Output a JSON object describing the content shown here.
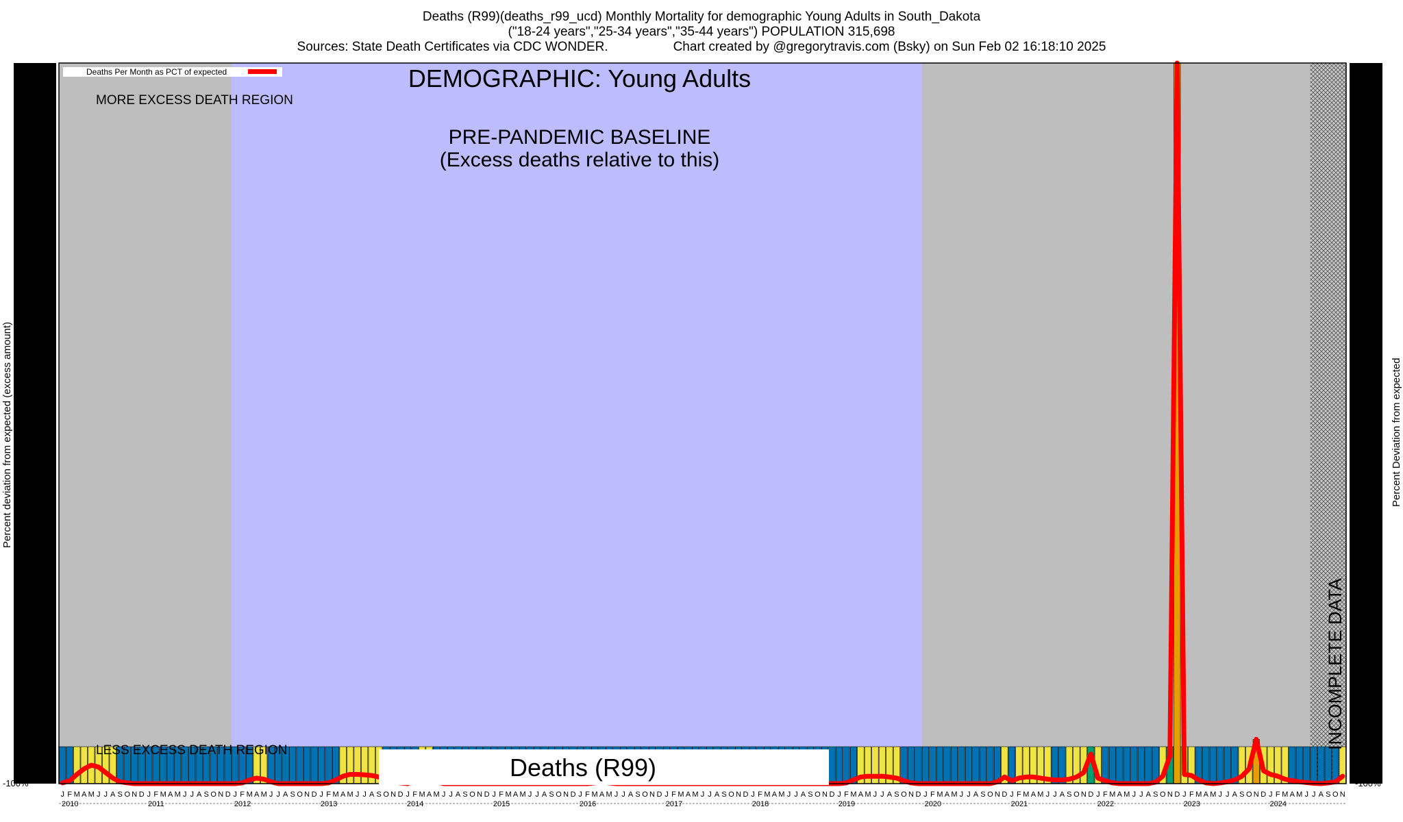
{
  "header": {
    "title_line1": "Deaths (R99)(deaths_r99_ucd) Monthly Mortality for demographic Young Adults in South_Dakota",
    "title_line2": "(\"18-24 years\",\"25-34 years\",\"35-44 years\") POPULATION 315,698",
    "title_line3": "Sources: State Death Certificates via CDC WONDER.                  Chart created by @gregorytravis.com (Bsky) on Sun Feb 02 16:18:10 2025"
  },
  "legend": {
    "label": "Deaths Per Month as PCT of expected",
    "color": "#ff0000"
  },
  "annotations": {
    "demographic": "DEMOGRAPHIC: Young Adults",
    "baseline_line1": "PRE-PANDEMIC BASELINE",
    "baseline_line2": "(Excess deaths relative to this)",
    "more_excess": "MORE EXCESS DEATH REGION",
    "less_excess": "LESS EXCESS DEATH REGION",
    "incomplete": "INCOMPLETE DATA",
    "footer_box": "Deaths (R99)"
  },
  "axes": {
    "ylabel_left": "Percent deviation from expected (excess amount)",
    "ylabel_right": "Percent Deviation from expected",
    "y_bottom_left_tick": "-100%",
    "y_bottom_right_tick": "-100%"
  },
  "colors": {
    "baseline_region": "#bdbdfd",
    "outer_region": "#bebebe",
    "line": "#ff0000",
    "bar_orange": "#e69f00",
    "bar_green": "#009e73",
    "bar_blue": "#0072b2",
    "bar_yellow": "#f0e442"
  },
  "chart_data": {
    "type": "line",
    "title": "Deaths (R99)(deaths_r99_ucd) Monthly Mortality for demographic Young Adults in South_Dakota",
    "ylabel": "Percent deviation from expected (excess amount)",
    "month_letters": [
      "J",
      "F",
      "M",
      "A",
      "M",
      "J",
      "J",
      "A",
      "S",
      "O",
      "N",
      "D"
    ],
    "years": [
      "2010",
      "2011",
      "2012",
      "2013",
      "2014",
      "2015",
      "2016",
      "2017",
      "2018",
      "2019",
      "2020",
      "2021",
      "2022",
      "2023",
      "2024"
    ],
    "last_year_months_shown": 11,
    "baseline_region": {
      "start": "2012-01",
      "end": "2019-12"
    },
    "incomplete_region": {
      "start": "2024-07",
      "end": "2024-11"
    },
    "series": [
      {
        "name": "Deaths Per Month as PCT of expected",
        "values": [
          -98,
          -92,
          -75,
          -60,
          -50,
          -55,
          -70,
          -85,
          -95,
          -98,
          -100,
          -100,
          -100,
          -100,
          -100,
          -100,
          -100,
          -100,
          -100,
          -100,
          -100,
          -100,
          -100,
          -100,
          -100,
          -98,
          -90,
          -85,
          -88,
          -95,
          -100,
          -100,
          -100,
          -100,
          -100,
          -100,
          -100,
          -98,
          -90,
          -80,
          -75,
          -75,
          -76,
          -78,
          -82,
          -90,
          -95,
          -98,
          -100,
          -90,
          -80,
          -82,
          -95,
          -100,
          -100,
          -100,
          -100,
          -100,
          -100,
          -100,
          -100,
          -100,
          -100,
          -100,
          -100,
          -100,
          -100,
          -100,
          -100,
          -100,
          -100,
          -100,
          -100,
          -100,
          -98,
          -95,
          -98,
          -100,
          -100,
          -100,
          -100,
          -100,
          -100,
          -100,
          -100,
          -100,
          -100,
          -100,
          -100,
          -100,
          -100,
          -100,
          -100,
          -100,
          -100,
          -100,
          -100,
          -100,
          -100,
          -100,
          -100,
          -100,
          -100,
          -100,
          -100,
          -100,
          -100,
          -100,
          -100,
          -98,
          -90,
          -82,
          -80,
          -80,
          -80,
          -82,
          -85,
          -92,
          -98,
          -100,
          -100,
          -100,
          -100,
          -100,
          -100,
          -100,
          -100,
          -100,
          -100,
          -100,
          -95,
          -82,
          -92,
          -85,
          -82,
          -82,
          -85,
          -88,
          -90,
          -90,
          -88,
          -82,
          -70,
          -20,
          -85,
          -92,
          -98,
          -100,
          -100,
          -100,
          -100,
          -100,
          -96,
          -80,
          -25,
          1850,
          -75,
          -78,
          -90,
          -98,
          -100,
          -98,
          -95,
          -90,
          -80,
          -60,
          20,
          -65,
          -75,
          -80,
          -88,
          -92,
          -95,
          -97,
          -99,
          -100,
          -98,
          -95,
          -80
        ]
      }
    ],
    "ylim": [
      -100,
      1850
    ]
  }
}
